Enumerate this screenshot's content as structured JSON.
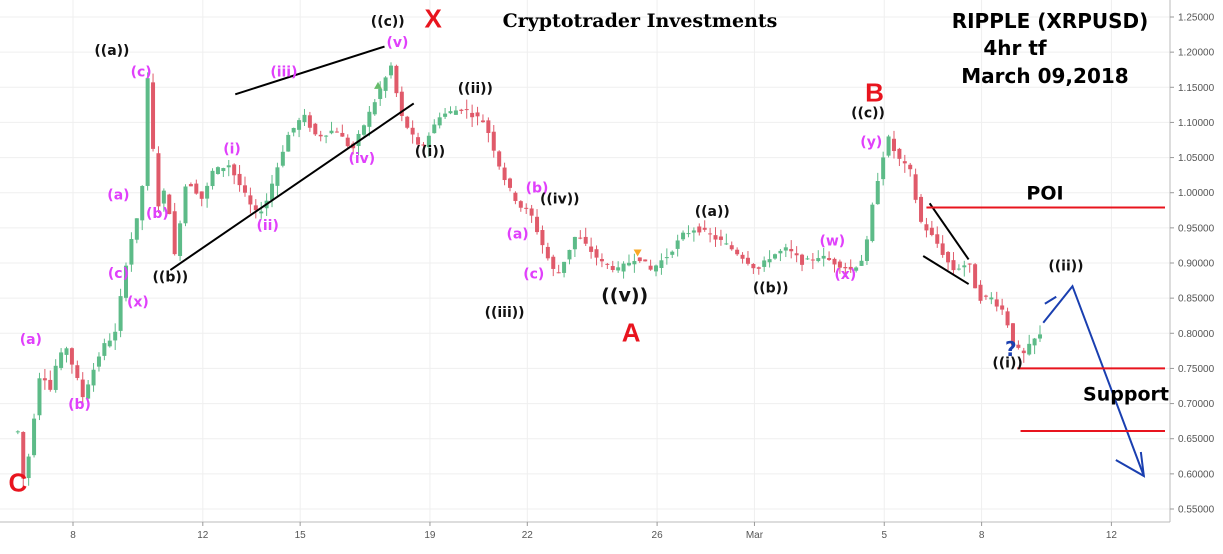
{
  "header": {
    "title": "Cryptotrader Investments",
    "symbol": "RIPPLE (XRPUSD)",
    "timeframe": "4hr tf",
    "date": "March 09,2018"
  },
  "chart_data": {
    "type": "candlestick",
    "ylim": [
      0.535,
      1.265
    ],
    "x_range_days": [
      6.3,
      14.0
    ],
    "y_ticks": [
      {
        "v": 1.25,
        "label": "1.25000"
      },
      {
        "v": 1.2,
        "label": "1.20000"
      },
      {
        "v": 1.15,
        "label": "1.15000"
      },
      {
        "v": 1.1,
        "label": "1.10000"
      },
      {
        "v": 1.05,
        "label": "1.05000"
      },
      {
        "v": 1.0,
        "label": "1.00000"
      },
      {
        "v": 0.95,
        "label": "0.95000"
      },
      {
        "v": 0.9,
        "label": "0.90000"
      },
      {
        "v": 0.85,
        "label": "0.85000"
      },
      {
        "v": 0.8,
        "label": "0.80000"
      },
      {
        "v": 0.75,
        "label": "0.75000"
      },
      {
        "v": 0.7,
        "label": "0.70000"
      },
      {
        "v": 0.65,
        "label": "0.65000"
      },
      {
        "v": 0.6,
        "label": "0.60000"
      },
      {
        "v": 0.55,
        "label": "0.55000"
      }
    ],
    "x_ticks": [
      {
        "day": 8,
        "label": "8"
      },
      {
        "day": 12,
        "label": "12"
      },
      {
        "day": 15,
        "label": "15"
      },
      {
        "day": 19,
        "label": "19"
      },
      {
        "day": 22,
        "label": "22"
      },
      {
        "day": 26,
        "label": "26"
      },
      {
        "day": 29,
        "label": "Mar"
      },
      {
        "day": 33,
        "label": "5"
      },
      {
        "day": 36,
        "label": "8"
      },
      {
        "day": 40,
        "label": "12"
      }
    ],
    "anchors": [
      [
        6.3,
        0.66
      ],
      [
        6.5,
        0.58
      ],
      [
        7.0,
        0.75
      ],
      [
        7.3,
        0.72
      ],
      [
        7.5,
        0.76
      ],
      [
        7.8,
        0.78
      ],
      [
        8.3,
        0.71
      ],
      [
        8.9,
        0.78
      ],
      [
        9.3,
        0.8
      ],
      [
        9.7,
        0.92
      ],
      [
        10.1,
        0.98
      ],
      [
        10.3,
        1.16
      ],
      [
        10.6,
        0.98
      ],
      [
        10.9,
        1.01
      ],
      [
        11.1,
        0.9
      ],
      [
        11.5,
        1.02
      ],
      [
        12.0,
        0.99
      ],
      [
        12.3,
        1.03
      ],
      [
        12.8,
        1.04
      ],
      [
        13.6,
        0.97
      ],
      [
        13.9,
        0.98
      ],
      [
        14.6,
        1.08
      ],
      [
        15.1,
        1.11
      ],
      [
        15.5,
        1.08
      ],
      [
        16.1,
        1.09
      ],
      [
        16.6,
        1.06
      ],
      [
        17.2,
        1.12
      ],
      [
        17.8,
        1.18
      ],
      [
        18.1,
        1.11
      ],
      [
        18.7,
        1.06
      ],
      [
        19.3,
        1.11
      ],
      [
        20.0,
        1.12
      ],
      [
        20.7,
        1.1
      ],
      [
        21.2,
        1.03
      ],
      [
        21.5,
        1.0
      ],
      [
        21.8,
        0.98
      ],
      [
        22.1,
        0.97
      ],
      [
        22.6,
        0.91
      ],
      [
        22.9,
        0.88
      ],
      [
        23.5,
        0.94
      ],
      [
        23.9,
        0.92
      ],
      [
        24.3,
        0.9
      ],
      [
        24.8,
        0.89
      ],
      [
        25.4,
        0.91
      ],
      [
        25.8,
        0.89
      ],
      [
        26.3,
        0.91
      ],
      [
        26.8,
        0.94
      ],
      [
        27.2,
        0.95
      ],
      [
        27.6,
        0.94
      ],
      [
        28.0,
        0.93
      ],
      [
        28.6,
        0.91
      ],
      [
        29.1,
        0.89
      ],
      [
        29.5,
        0.91
      ],
      [
        30.0,
        0.92
      ],
      [
        30.5,
        0.9
      ],
      [
        31.0,
        0.91
      ],
      [
        31.5,
        0.9
      ],
      [
        32.0,
        0.89
      ],
      [
        32.4,
        0.91
      ],
      [
        32.7,
        1.0
      ],
      [
        33.1,
        1.08
      ],
      [
        33.4,
        1.05
      ],
      [
        33.8,
        1.03
      ],
      [
        34.1,
        0.96
      ],
      [
        34.6,
        0.93
      ],
      [
        35.1,
        0.89
      ],
      [
        35.6,
        0.9
      ],
      [
        35.9,
        0.85
      ],
      [
        36.3,
        0.85
      ],
      [
        36.7,
        0.83
      ],
      [
        37.0,
        0.78
      ],
      [
        37.3,
        0.77
      ],
      [
        37.6,
        0.79
      ],
      [
        37.9,
        0.8
      ]
    ],
    "annotations": {
      "pink": [
        {
          "t": "(a)",
          "day": 6.7,
          "v": 0.785
        },
        {
          "t": "(b)",
          "day": 8.2,
          "v": 0.692
        },
        {
          "t": "(c)",
          "day": 9.4,
          "v": 0.879
        },
        {
          "t": "(x)",
          "day": 10.0,
          "v": 0.838
        },
        {
          "t": "(c)",
          "day": 10.1,
          "v": 1.165
        },
        {
          "t": "(a)",
          "day": 9.4,
          "v": 0.99
        },
        {
          "t": "(b)",
          "day": 10.6,
          "v": 0.964
        },
        {
          "t": "(i)",
          "day": 12.9,
          "v": 1.056
        },
        {
          "t": "(ii)",
          "day": 14.0,
          "v": 0.947
        },
        {
          "t": "(iii)",
          "day": 14.5,
          "v": 1.165
        },
        {
          "t": "(iv)",
          "day": 16.9,
          "v": 1.042
        },
        {
          "t": "(v)",
          "day": 18.0,
          "v": 1.207
        },
        {
          "t": "(a)",
          "day": 21.7,
          "v": 0.935
        },
        {
          "t": "(b)",
          "day": 22.3,
          "v": 1.0
        },
        {
          "t": "(c)",
          "day": 22.2,
          "v": 0.878
        },
        {
          "t": "(w)",
          "day": 31.4,
          "v": 0.925
        },
        {
          "t": "(x)",
          "day": 31.8,
          "v": 0.877
        },
        {
          "t": "(y)",
          "day": 32.6,
          "v": 1.066
        }
      ],
      "black": [
        {
          "t": "((a))",
          "day": 9.2,
          "v": 1.196
        },
        {
          "t": "((b))",
          "day": 11.0,
          "v": 0.874
        },
        {
          "t": "((c))",
          "day": 17.7,
          "v": 1.237
        },
        {
          "t": "((ii))",
          "day": 20.4,
          "v": 1.142
        },
        {
          "t": "((i))",
          "day": 19.0,
          "v": 1.052
        },
        {
          "t": "((iv))",
          "day": 23.0,
          "v": 0.985
        },
        {
          "t": "((iii))",
          "day": 21.3,
          "v": 0.823
        },
        {
          "t": "((a))",
          "day": 27.7,
          "v": 0.967
        },
        {
          "t": "((b))",
          "day": 29.5,
          "v": 0.858
        },
        {
          "t": "((c))",
          "day": 32.5,
          "v": 1.107
        },
        {
          "t": "((i))",
          "day": 36.8,
          "v": 0.751
        },
        {
          "t": "((ii))",
          "day": 38.6,
          "v": 0.889
        }
      ],
      "black_big": [
        {
          "t": "((v))",
          "day": 25.0,
          "v": 0.845
        }
      ],
      "red": [
        {
          "t": "C",
          "day": 6.3,
          "v": 0.575
        },
        {
          "t": "X",
          "day": 19.1,
          "v": 1.235
        },
        {
          "t": "A",
          "day": 25.2,
          "v": 0.788
        },
        {
          "t": "B",
          "day": 32.7,
          "v": 1.13
        }
      ],
      "question": [
        {
          "t": "?",
          "day": 36.9,
          "v": 0.768
        }
      ]
    },
    "trendlines": [
      {
        "from": [
          11.0,
          0.89
        ],
        "to": [
          18.5,
          1.127
        ],
        "color": "#000000"
      },
      {
        "from": [
          13.0,
          1.14
        ],
        "to": [
          17.6,
          1.208
        ],
        "color": "#000000"
      },
      {
        "from": [
          34.4,
          0.985
        ],
        "to": [
          35.6,
          0.905
        ],
        "color": "#000000"
      },
      {
        "from": [
          34.2,
          0.91
        ],
        "to": [
          35.6,
          0.87
        ],
        "color": "#000000"
      }
    ],
    "projection": {
      "color": "#1a3fb0",
      "points": [
        [
          37.9,
          0.815
        ],
        [
          38.8,
          0.867
        ],
        [
          41.0,
          0.597
        ]
      ],
      "small_stroke": [
        [
          37.95,
          0.842
        ],
        [
          38.3,
          0.852
        ]
      ],
      "arrowhead_at": [
        41.0,
        0.597
      ]
    },
    "levels": [
      {
        "label": "POI",
        "value": 0.979,
        "from_day": 34.3,
        "color": "#e8141e"
      },
      {
        "label": "Support",
        "value": 0.75,
        "from_day": 37.1,
        "color": "#e8141e"
      },
      {
        "label": "",
        "value": 0.661,
        "from_day": 37.2,
        "color": "#e8141e"
      }
    ],
    "markers": [
      {
        "type": "up",
        "color": "#66bb6a",
        "day": 17.4,
        "v": 1.152
      },
      {
        "type": "down",
        "color": "#f9a825",
        "day": 25.4,
        "v": 0.915
      }
    ],
    "colors": {
      "up": "#5dbb88",
      "down": "#e05a6a",
      "grid": "#efefef",
      "axis": "#bbbbbb"
    }
  }
}
